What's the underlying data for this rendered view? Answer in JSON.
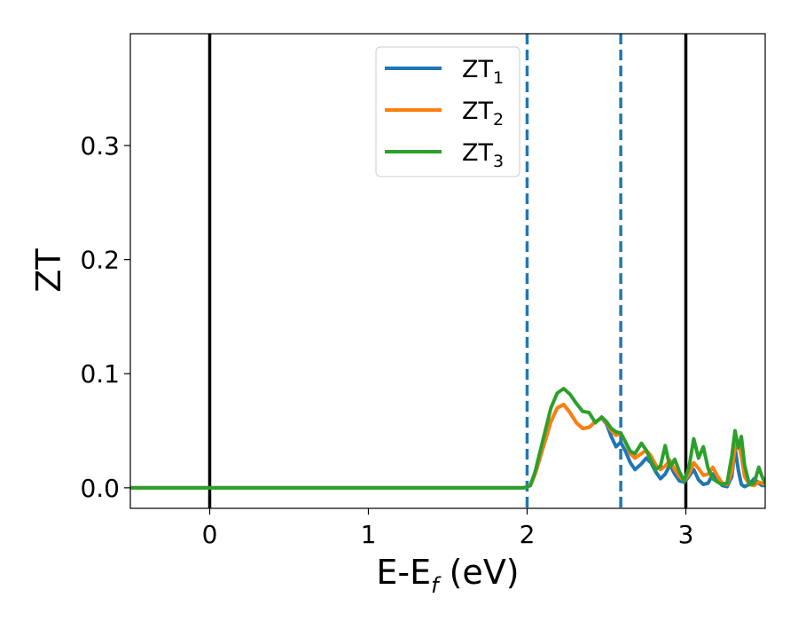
{
  "chart_data": {
    "type": "line",
    "xlabel_main": "E-E",
    "xlabel_sub": "f",
    "xlabel_unit": " (eV)",
    "ylabel": "ZT",
    "xlim": [
      -0.5,
      3.5
    ],
    "ylim": [
      -0.018,
      0.398
    ],
    "xticks": [
      0,
      1,
      2,
      3
    ],
    "xtick_labels": [
      "0",
      "1",
      "2",
      "3"
    ],
    "yticks": [
      0.0,
      0.1,
      0.2,
      0.3
    ],
    "ytick_labels": [
      "0.0",
      "0.1",
      "0.2",
      "0.3"
    ],
    "grid": false,
    "legend_position": "top-center",
    "vertical_lines": [
      {
        "x": 0,
        "style": "solid",
        "color": "#000000"
      },
      {
        "x": 3,
        "style": "solid",
        "color": "#000000"
      },
      {
        "x": 2,
        "style": "dashed",
        "color": "#1f77b4"
      },
      {
        "x": 2.59,
        "style": "dashed",
        "color": "#1f77b4"
      }
    ],
    "series": [
      {
        "name": "ZT",
        "subscript": "1",
        "color": "#1f77b4",
        "x": [
          -0.5,
          1.98,
          2.02,
          2.05,
          2.1,
          2.15,
          2.19,
          2.23,
          2.27,
          2.31,
          2.35,
          2.39,
          2.43,
          2.47,
          2.5,
          2.53,
          2.56,
          2.59,
          2.62,
          2.65,
          2.68,
          2.72,
          2.75,
          2.78,
          2.81,
          2.84,
          2.87,
          2.9,
          2.93,
          2.96,
          2.99,
          3.02,
          3.05,
          3.08,
          3.11,
          3.14,
          3.17,
          3.2,
          3.23,
          3.26,
          3.29,
          3.31,
          3.33,
          3.35,
          3.37,
          3.4,
          3.43,
          3.46,
          3.48,
          3.5
        ],
        "y": [
          0.0,
          0.0,
          0.002,
          0.012,
          0.035,
          0.058,
          0.07,
          0.073,
          0.066,
          0.057,
          0.052,
          0.053,
          0.058,
          0.061,
          0.056,
          0.045,
          0.036,
          0.04,
          0.032,
          0.022,
          0.016,
          0.021,
          0.026,
          0.022,
          0.014,
          0.008,
          0.012,
          0.02,
          0.012,
          0.006,
          0.005,
          0.01,
          0.016,
          0.007,
          0.003,
          0.004,
          0.012,
          0.006,
          0.002,
          0.001,
          0.01,
          0.035,
          0.016,
          0.003,
          0.001,
          0.003,
          0.008,
          0.004,
          0.002,
          0.002
        ]
      },
      {
        "name": "ZT",
        "subscript": "2",
        "color": "#ff7f0e",
        "x": [
          -0.5,
          1.98,
          2.02,
          2.05,
          2.1,
          2.15,
          2.19,
          2.23,
          2.27,
          2.31,
          2.35,
          2.39,
          2.43,
          2.47,
          2.5,
          2.53,
          2.56,
          2.59,
          2.62,
          2.65,
          2.68,
          2.72,
          2.75,
          2.78,
          2.81,
          2.84,
          2.87,
          2.9,
          2.93,
          2.96,
          2.99,
          3.02,
          3.05,
          3.08,
          3.11,
          3.14,
          3.17,
          3.2,
          3.23,
          3.26,
          3.29,
          3.31,
          3.33,
          3.35,
          3.37,
          3.4,
          3.43,
          3.46,
          3.48,
          3.5
        ],
        "y": [
          0.0,
          0.0,
          0.002,
          0.012,
          0.035,
          0.058,
          0.07,
          0.073,
          0.066,
          0.057,
          0.052,
          0.053,
          0.058,
          0.061,
          0.057,
          0.05,
          0.046,
          0.048,
          0.04,
          0.03,
          0.026,
          0.03,
          0.033,
          0.028,
          0.02,
          0.016,
          0.019,
          0.024,
          0.016,
          0.01,
          0.006,
          0.012,
          0.022,
          0.017,
          0.011,
          0.012,
          0.018,
          0.01,
          0.004,
          0.003,
          0.014,
          0.036,
          0.04,
          0.028,
          0.01,
          0.003,
          0.002,
          0.005,
          0.004,
          0.003
        ]
      },
      {
        "name": "ZT",
        "subscript": "3",
        "color": "#2ca02c",
        "x": [
          -0.5,
          1.98,
          2.02,
          2.05,
          2.1,
          2.15,
          2.19,
          2.23,
          2.27,
          2.31,
          2.35,
          2.39,
          2.43,
          2.47,
          2.5,
          2.53,
          2.56,
          2.59,
          2.62,
          2.65,
          2.68,
          2.72,
          2.75,
          2.78,
          2.81,
          2.84,
          2.87,
          2.9,
          2.93,
          2.96,
          2.99,
          3.02,
          3.05,
          3.08,
          3.11,
          3.14,
          3.17,
          3.2,
          3.23,
          3.26,
          3.29,
          3.31,
          3.33,
          3.35,
          3.37,
          3.4,
          3.43,
          3.46,
          3.48,
          3.5
        ],
        "y": [
          0.0,
          0.0,
          0.002,
          0.014,
          0.042,
          0.07,
          0.083,
          0.087,
          0.082,
          0.074,
          0.067,
          0.066,
          0.057,
          0.062,
          0.058,
          0.052,
          0.049,
          0.048,
          0.04,
          0.032,
          0.03,
          0.039,
          0.033,
          0.024,
          0.016,
          0.019,
          0.037,
          0.018,
          0.025,
          0.014,
          0.006,
          0.018,
          0.043,
          0.026,
          0.036,
          0.017,
          0.008,
          0.005,
          0.003,
          0.004,
          0.028,
          0.05,
          0.035,
          0.045,
          0.02,
          0.003,
          0.004,
          0.018,
          0.01,
          0.004
        ]
      }
    ]
  }
}
